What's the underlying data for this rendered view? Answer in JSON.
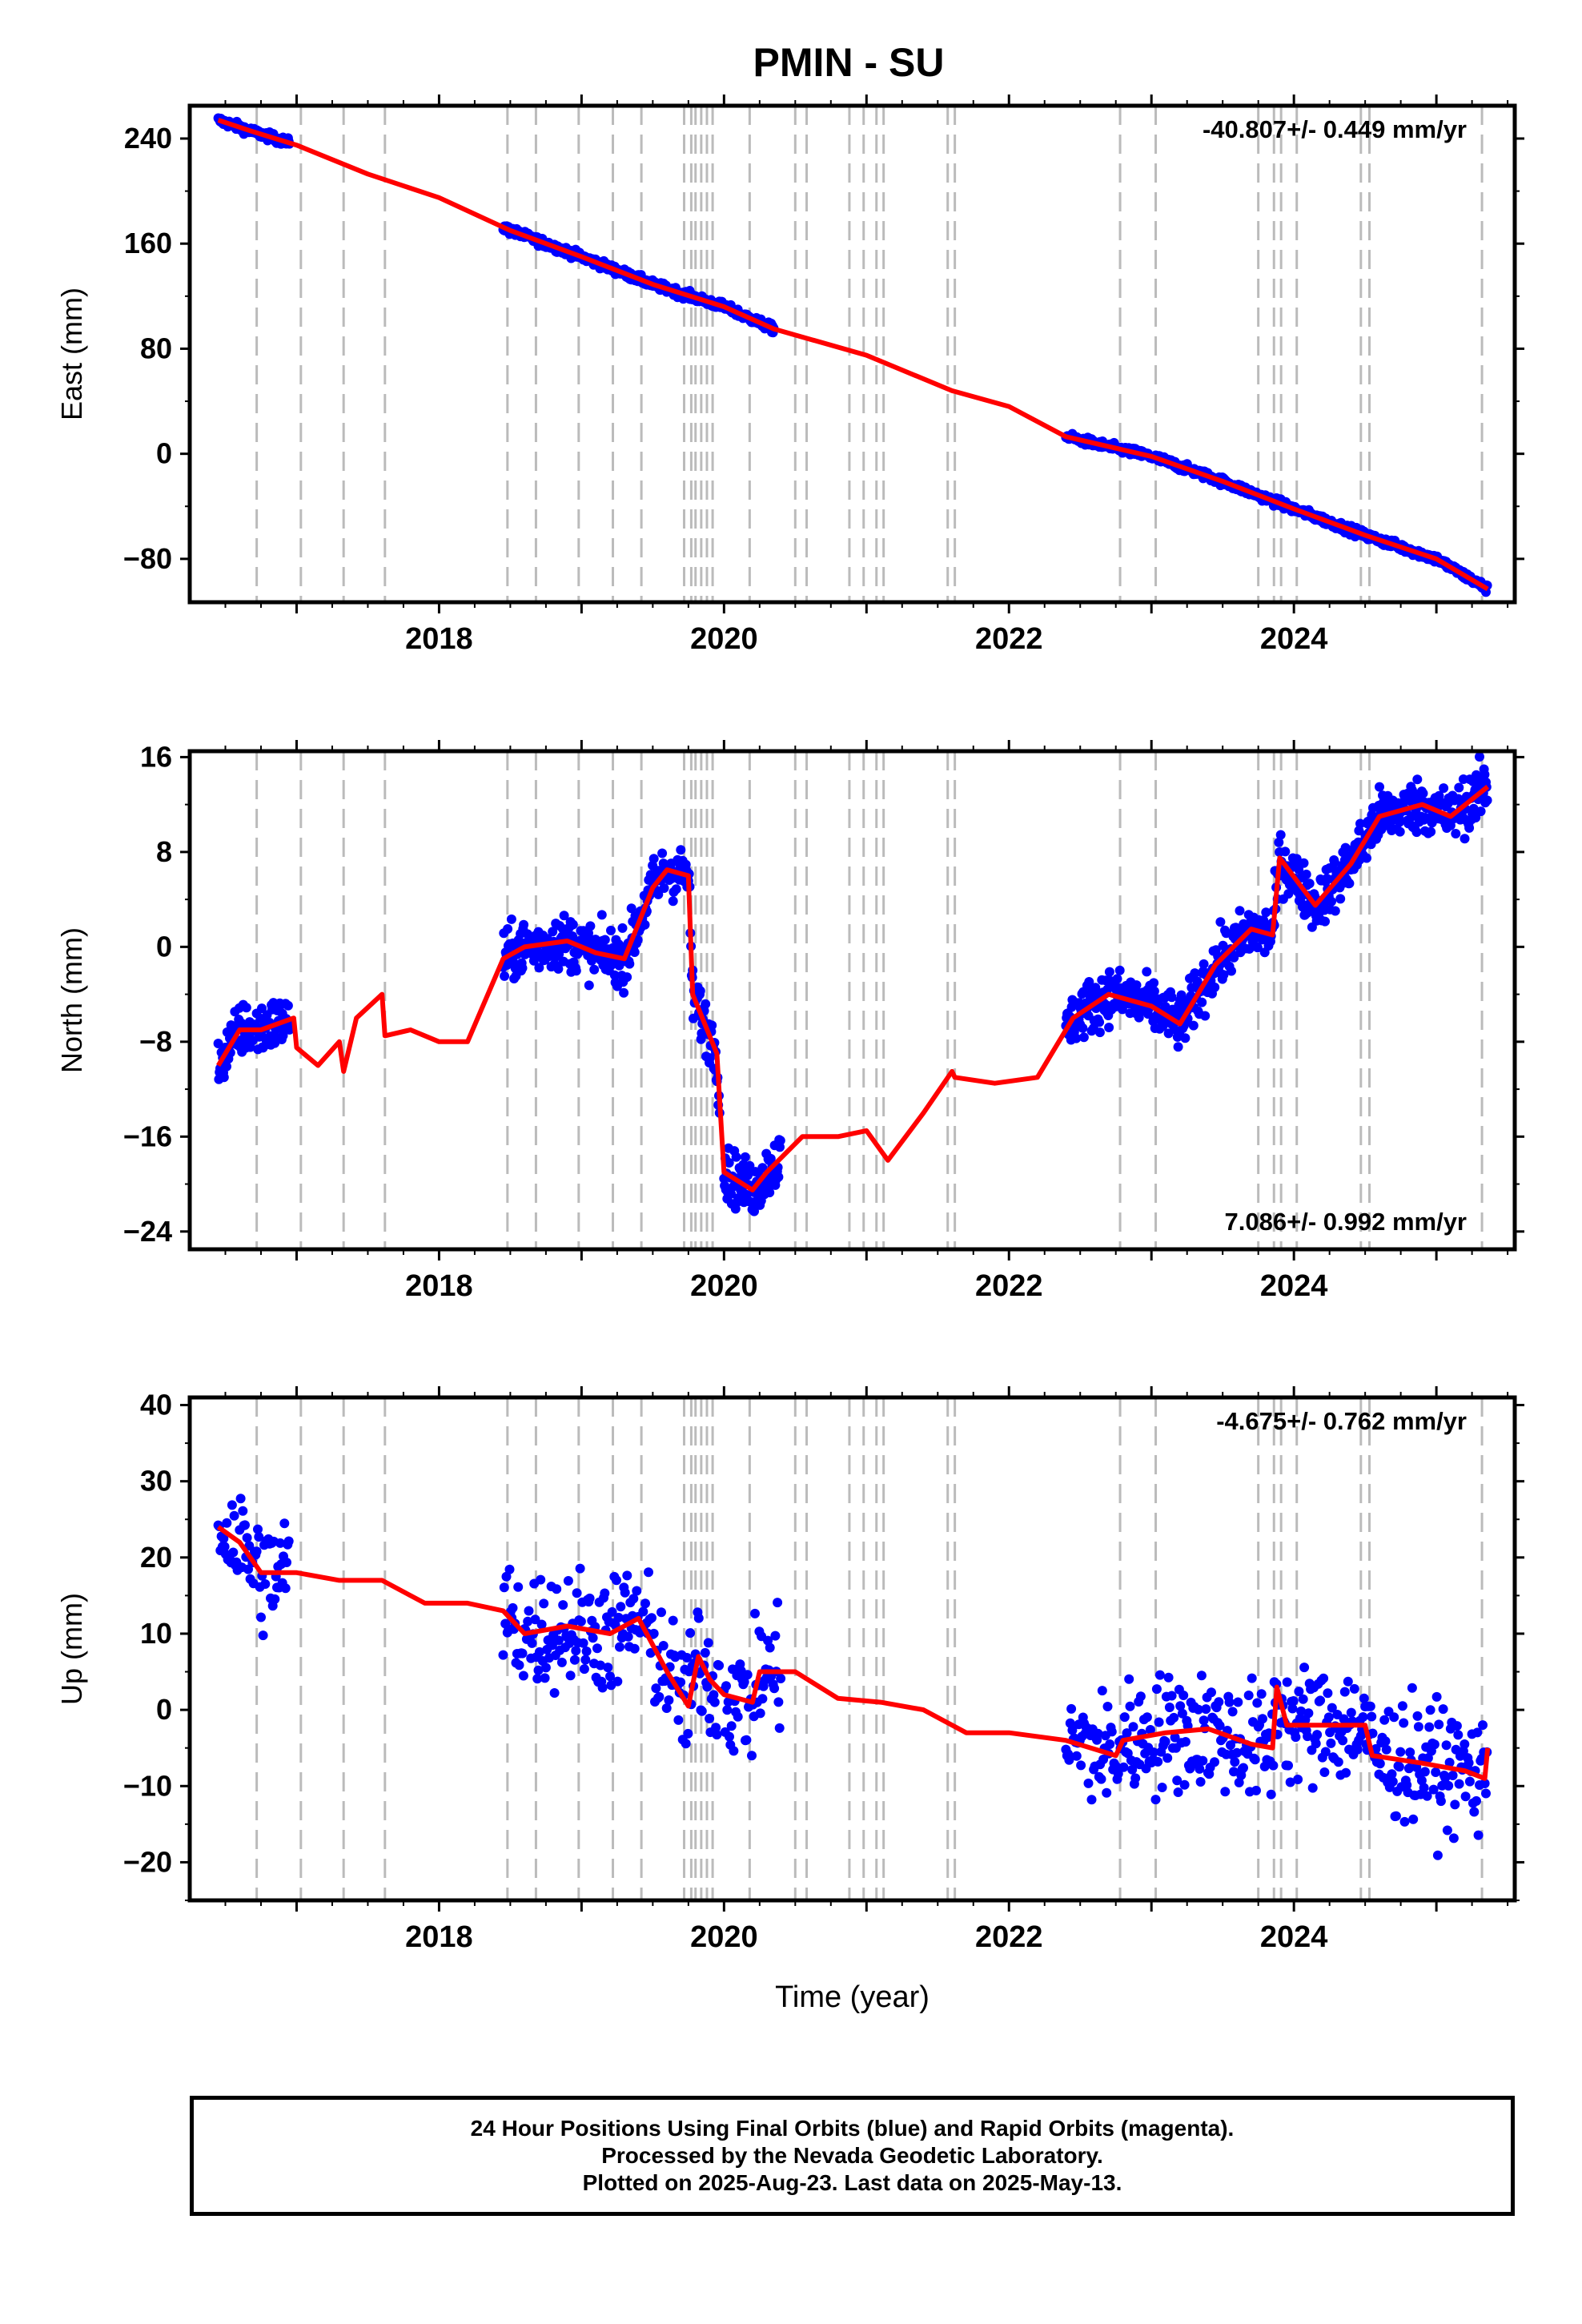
{
  "title": "PMIN - SU",
  "chart_data": [
    {
      "type": "scatter",
      "panel": "east",
      "ylabel": "East (mm)",
      "rate": "-40.807+/- 0.449 mm/yr",
      "rate_position": "top-right",
      "xlim": [
        2016.25,
        2025.55
      ],
      "ylim": [
        -113,
        265
      ],
      "yticks": [
        240,
        160,
        80,
        0,
        -80
      ],
      "xticks": [
        2018,
        2020,
        2022,
        2024
      ],
      "x_ticklabels": [
        "2018",
        "2020",
        "2022",
        "2024"
      ],
      "series": [
        {
          "kind": "observations",
          "color": "#0000ff",
          "segments": [
            [
              2016.45,
              2016.95
            ],
            [
              2018.45,
              2020.35
            ],
            [
              2022.4,
              2025.36
            ]
          ]
        },
        {
          "kind": "model",
          "color": "#ff0000",
          "x": [
            2016.45,
            2016.7,
            2017.0,
            2017.5,
            2018.0,
            2018.5,
            2019.0,
            2019.5,
            2020.0,
            2020.35,
            2021.0,
            2021.6,
            2022.0,
            2022.4,
            2023.0,
            2023.5,
            2024.0,
            2024.5,
            2025.0,
            2025.36
          ],
          "y": [
            254,
            245,
            235,
            213,
            195,
            170,
            150,
            129,
            112,
            95,
            75,
            48,
            36,
            13,
            -2,
            -21,
            -42,
            -62,
            -80,
            -103
          ]
        }
      ]
    },
    {
      "type": "scatter",
      "panel": "north",
      "ylabel": "North (mm)",
      "rate": "7.086+/- 0.992 mm/yr",
      "rate_position": "bottom-right",
      "xlim": [
        2016.25,
        2025.55
      ],
      "ylim": [
        -25.5,
        16.5
      ],
      "yticks": [
        16,
        8,
        0,
        -8,
        -16,
        -24
      ],
      "xticks": [
        2018,
        2020,
        2022,
        2024
      ],
      "x_ticklabels": [
        "2018",
        "2020",
        "2022",
        "2024"
      ],
      "series": [
        {
          "kind": "observations",
          "color": "#0000ff",
          "segments": [
            [
              2016.45,
              2016.95
            ],
            [
              2018.45,
              2019.78
            ],
            [
              2019.78,
              2019.97
            ],
            [
              2020.0,
              2020.4
            ],
            [
              2022.4,
              2025.36
            ]
          ]
        },
        {
          "kind": "model",
          "color": "#ff0000",
          "x": [
            2016.45,
            2016.6,
            2016.75,
            2016.98,
            2017.0,
            2017.15,
            2017.3,
            2017.33,
            2017.42,
            2017.6,
            2017.62,
            2017.8,
            2018.0,
            2018.2,
            2018.45,
            2018.6,
            2018.9,
            2019.1,
            2019.3,
            2019.5,
            2019.6,
            2019.75,
            2019.78,
            2019.95,
            2020.0,
            2020.2,
            2020.3,
            2020.55,
            2020.8,
            2021.0,
            2021.15,
            2021.4,
            2021.6,
            2021.62,
            2021.9,
            2022.2,
            2022.45,
            2022.7,
            2023.0,
            2023.2,
            2023.45,
            2023.7,
            2023.85,
            2023.9,
            2024.15,
            2024.4,
            2024.6,
            2024.9,
            2025.1,
            2025.36
          ],
          "y": [
            -10,
            -7,
            -7,
            -6,
            -8.5,
            -10,
            -8,
            -10.5,
            -6,
            -4,
            -7.5,
            -7,
            -8,
            -8,
            -1,
            0,
            0.5,
            -0.5,
            -1,
            5,
            6.5,
            6,
            -4,
            -9,
            -19,
            -20.5,
            -19,
            -16,
            -16,
            -15.5,
            -18,
            -14,
            -10.5,
            -11,
            -11.5,
            -11,
            -6,
            -4,
            -5,
            -6.5,
            -1.5,
            1.5,
            1,
            7.5,
            3.5,
            7,
            11,
            12,
            11,
            13.5
          ]
        }
      ]
    },
    {
      "type": "scatter",
      "panel": "up",
      "ylabel": "Up (mm)",
      "xlabel": "Time (year)",
      "rate": "-4.675+/- 0.762 mm/yr",
      "rate_position": "top-right",
      "xlim": [
        2016.25,
        2025.55
      ],
      "ylim": [
        -25,
        41
      ],
      "yticks": [
        40,
        30,
        20,
        10,
        0,
        -10,
        -20
      ],
      "xticks": [
        2018,
        2020,
        2022,
        2024
      ],
      "x_ticklabels": [
        "2018",
        "2020",
        "2022",
        "2024"
      ],
      "series": [
        {
          "kind": "observations",
          "color": "#0000ff",
          "segments": [
            [
              2016.45,
              2016.95
            ],
            [
              2018.45,
              2019.97
            ],
            [
              2020.0,
              2020.4
            ],
            [
              2022.4,
              2025.36
            ]
          ]
        },
        {
          "kind": "model",
          "color": "#ff0000",
          "x": [
            2016.45,
            2016.6,
            2016.75,
            2017.0,
            2017.3,
            2017.6,
            2017.9,
            2018.2,
            2018.45,
            2018.6,
            2018.9,
            2019.2,
            2019.4,
            2019.6,
            2019.75,
            2019.82,
            2019.9,
            2020.0,
            2020.2,
            2020.25,
            2020.5,
            2020.8,
            2021.1,
            2021.4,
            2021.7,
            2022.0,
            2022.4,
            2022.75,
            2022.8,
            2023.1,
            2023.4,
            2023.7,
            2023.85,
            2023.88,
            2023.95,
            2024.2,
            2024.5,
            2024.55,
            2024.9,
            2025.2,
            2025.34,
            2025.36
          ],
          "y": [
            24,
            22,
            18,
            18,
            17,
            17,
            14,
            14,
            13,
            10,
            11,
            10,
            12,
            5,
            0.5,
            7,
            4,
            2,
            1,
            5,
            5,
            1.5,
            1,
            0,
            -3,
            -3,
            -4,
            -6,
            -4,
            -3,
            -2.5,
            -4.5,
            -5,
            3,
            -2,
            -2,
            -2,
            -6,
            -7,
            -8,
            -9,
            -5
          ]
        }
      ]
    }
  ],
  "footer": {
    "line1": "24 Hour Positions Using Final Orbits (blue) and Rapid Orbits (magenta).",
    "line2": "Processed by the Nevada Geodetic Laboratory.",
    "line3": "Plotted on 2025-Aug-23. Last data on 2025-May-13."
  },
  "colors": {
    "observations": "#0000ff",
    "model": "#ff0000",
    "event_lines": "#bbbbbb"
  },
  "event_lines_years": [
    2016.72,
    2017.03,
    2017.33,
    2017.62,
    2018.48,
    2018.68,
    2018.98,
    2019.22,
    2019.42,
    2019.72,
    2019.77,
    2019.8,
    2019.84,
    2019.88,
    2019.92,
    2020.18,
    2020.5,
    2020.58,
    2020.88,
    2020.98,
    2021.07,
    2021.12,
    2021.57,
    2021.62,
    2022.78,
    2023.03,
    2023.75,
    2023.86,
    2023.91,
    2024.02,
    2024.47,
    2024.53,
    2025.32
  ]
}
